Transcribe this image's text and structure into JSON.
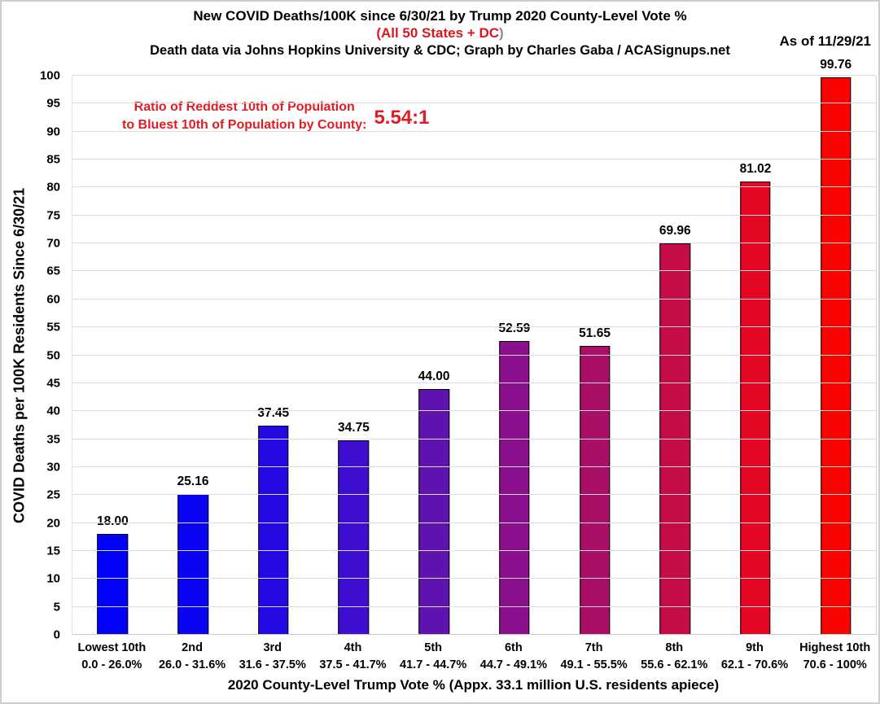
{
  "header": {
    "title": "New COVID Deaths/100K since 6/30/21 by Trump 2020 County-Level Vote %",
    "subtitle_red": "(All 50 States + DC",
    "subtitle_paren": ")",
    "credit": "Death data via Johns Hopkins University & CDC; Graph by Charles Gaba / ACASignups.net",
    "as_of": "As of 11/29/21"
  },
  "annotation": {
    "line1": "Ratio of Reddest 10th of Population",
    "line2": "to Bluest 10th of Population by County:",
    "ratio": "5.54:1"
  },
  "colors": {
    "accent_red": "#e01d24",
    "paren_gray": "#8b8b8b",
    "gridline": "#dcdcdc",
    "bar_border": "#000000"
  },
  "chart_data": {
    "type": "bar",
    "title": "New COVID Deaths/100K since 6/30/21 by Trump 2020 County-Level Vote %",
    "xlabel": "2020 County-Level Trump Vote % (Appx. 33.1 million U.S. residents apiece)",
    "ylabel": "COVID Deaths per 100K Residents Since 6/30/21",
    "ylim": [
      0,
      100
    ],
    "ytick_step": 5,
    "grid": true,
    "legend_position": "none",
    "categories": [
      "Lowest 10th",
      "2nd",
      "3rd",
      "4th",
      "5th",
      "6th",
      "7th",
      "8th",
      "9th",
      "Highest 10th"
    ],
    "category_ranges": [
      "0.0 - 26.0%",
      "26.0 - 31.6%",
      "31.6 - 37.5%",
      "37.5 - 41.7%",
      "41.7 - 44.7%",
      "44.7 - 49.1%",
      "49.1 - 55.5%",
      "55.6 - 62.1%",
      "62.1 - 70.6%",
      "70.6 - 100%"
    ],
    "values": [
      18.0,
      25.16,
      37.45,
      34.75,
      44.0,
      52.59,
      51.65,
      69.96,
      81.02,
      99.76
    ],
    "value_labels": [
      "18.00",
      "25.16",
      "37.45",
      "34.75",
      "44.00",
      "52.59",
      "51.65",
      "69.96",
      "81.02",
      "99.76"
    ],
    "bar_colors": [
      "#0201fb",
      "#0a04f3",
      "#2309e2",
      "#3e0ed0",
      "#5e12b0",
      "#8a108d",
      "#a90f66",
      "#c60c44",
      "#e30723",
      "#fa0301"
    ]
  }
}
